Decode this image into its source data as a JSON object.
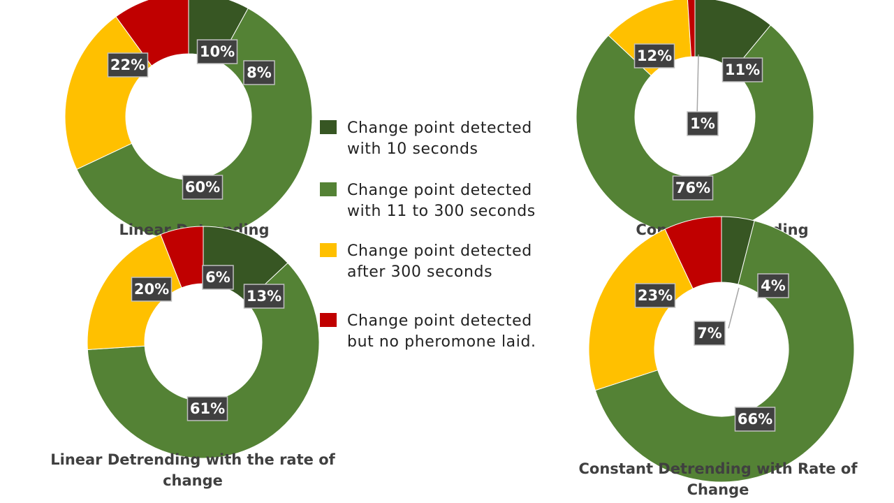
{
  "legend": [
    {
      "line1": "Change point detected",
      "line2": "with 10 seconds",
      "color": "#375623"
    },
    {
      "line1": "Change point detected",
      "line2": "with 11 to 300 seconds",
      "color": "#548235"
    },
    {
      "line1": "Change point detected",
      "line2": "after 300 seconds",
      "color": "#FFC000"
    },
    {
      "line1": "Change point detected",
      "line2": "but no pheromone laid.",
      "color": "#C00000"
    }
  ],
  "chart_data": [
    {
      "type": "pie",
      "variant": "donut",
      "title_lines": [
        "Linear Detrending"
      ],
      "categories": [
        "Change point detected with 10 seconds",
        "Change point detected with 11 to 300 seconds",
        "Change point detected after 300 seconds",
        "Change point detected but no pheromone laid."
      ],
      "values": [
        8,
        60,
        22,
        10
      ],
      "data_labels": [
        "8%",
        "60%",
        "22%",
        "10%"
      ]
    },
    {
      "type": "pie",
      "variant": "donut",
      "title_lines": [
        "Constant Detrending"
      ],
      "categories": [
        "Change point detected with 10 seconds",
        "Change point detected with 11 to 300 seconds",
        "Change point detected after 300 seconds",
        "Change point detected but no pheromone laid."
      ],
      "values": [
        11,
        76,
        12,
        1
      ],
      "data_labels": [
        "11%",
        "76%",
        "12%",
        "1%"
      ]
    },
    {
      "type": "pie",
      "variant": "donut",
      "title_lines": [
        "Linear Detrending with  the rate of",
        "change"
      ],
      "categories": [
        "Change point detected with 10 seconds",
        "Change point detected with 11 to 300 seconds",
        "Change point detected after 300 seconds",
        "Change point detected but no pheromone laid."
      ],
      "values": [
        13,
        61,
        20,
        6
      ],
      "data_labels": [
        "13%",
        "61%",
        "20%",
        "6%"
      ]
    },
    {
      "type": "pie",
      "variant": "donut",
      "title_lines": [
        "Constant Detrending with Rate of",
        "Change"
      ],
      "categories": [
        "Change point detected with 10 seconds",
        "Change point detected with 11 to 300 seconds",
        "Change point detected after 300 seconds",
        "Change point detected but no pheromone laid."
      ],
      "values": [
        4,
        66,
        23,
        7
      ],
      "data_labels": [
        "4%",
        "66%",
        "23%",
        "7%"
      ]
    }
  ]
}
